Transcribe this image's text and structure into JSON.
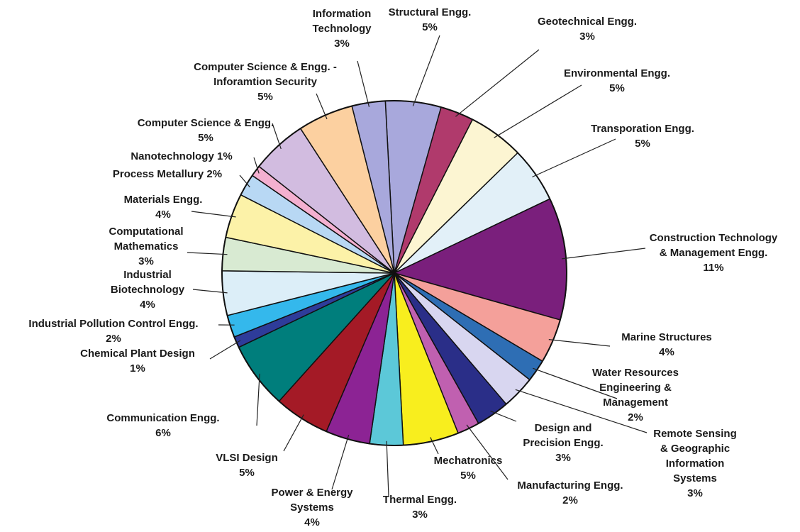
{
  "chart_data": {
    "type": "pie",
    "title": "",
    "start_angle_deg": -93,
    "slices": [
      {
        "label": "Structural Engg.\n5%",
        "name": "Structural Engg.",
        "value": 5,
        "color": "#a8a8dc"
      },
      {
        "label": "Geotechnical Engg.\n3%",
        "name": "Geotechnical Engg.",
        "value": 3,
        "color": "#b03a6c"
      },
      {
        "label": "Environmental Engg.\n5%",
        "name": "Environmental Engg.",
        "value": 5,
        "color": "#fcf5d2"
      },
      {
        "label": "Transporation Engg.\n5%",
        "name": "Transporation Engg.",
        "value": 5,
        "color": "#e2f0f8"
      },
      {
        "label": "Construction Technology\n& Management Engg.\n11%",
        "name": "Construction Technology & Management Engg.",
        "value": 11,
        "color": "#7a1f7c"
      },
      {
        "label": "Marine Structures\n4%",
        "name": "Marine Structures",
        "value": 4,
        "color": "#f4a09a"
      },
      {
        "label": "Water Resources\nEngineering &\nManagement\n2%",
        "name": "Water Resources Engineering & Management",
        "value": 2,
        "color": "#2e6eb4"
      },
      {
        "label": "Remote Sensing\n& Geographic\nInformation\nSystems\n3%",
        "name": "Remote Sensing & Geographic Information Systems",
        "value": 3,
        "color": "#d8d6f0"
      },
      {
        "label": "Design and\nPrecision Engg.\n3%",
        "name": "Design and Precision Engg.",
        "value": 3,
        "color": "#2a2e88"
      },
      {
        "label": "Manufacturing Engg.\n2%",
        "name": "Manufacturing Engg.",
        "value": 2,
        "color": "#c060b0"
      },
      {
        "label": "Mechatronics\n5%",
        "name": "Mechatronics",
        "value": 5,
        "color": "#f8ee1e"
      },
      {
        "label": "Thermal Engg.\n3%",
        "name": "Thermal Engg.",
        "value": 3,
        "color": "#5cc8d8"
      },
      {
        "label": "Power & Energy\nSystems\n4%",
        "name": "Power & Energy Systems",
        "value": 4,
        "color": "#8c2394"
      },
      {
        "label": "VLSI Design\n5%",
        "name": "VLSI Design",
        "value": 5,
        "color": "#a41a26"
      },
      {
        "label": "Communication Engg.\n6%",
        "name": "Communication Engg.",
        "value": 6,
        "color": "#007e7c"
      },
      {
        "label": "Chemical Plant Design\n1%",
        "name": "Chemical Plant Design",
        "value": 1,
        "color": "#2e3c9a"
      },
      {
        "label": "Industrial Pollution Control Engg.\n2%",
        "name": "Industrial Pollution Control Engg.",
        "value": 2,
        "color": "#34b8ec"
      },
      {
        "label": "Industrial\nBiotechnology\n4%",
        "name": "Industrial Biotechnology",
        "value": 4,
        "color": "#dceef8"
      },
      {
        "label": "Computational\nMathematics\n3%",
        "name": "Computational Mathematics",
        "value": 3,
        "color": "#d8ead2"
      },
      {
        "label": "Materials Engg.\n4%",
        "name": "Materials Engg.",
        "value": 4,
        "color": "#fcf2a8"
      },
      {
        "label": "Process Metallury 2%",
        "name": "Process Metallury",
        "value": 2,
        "color": "#b8d8f4"
      },
      {
        "label": "Nanotechnology 1%",
        "name": "Nanotechnology",
        "value": 1,
        "color": "#f4b0d0"
      },
      {
        "label": "Computer Science & Engg.\n5%",
        "name": "Computer Science & Engg.",
        "value": 5,
        "color": "#d2bce0"
      },
      {
        "label": "Computer Science & Engg. -\nInforamtion Security\n5%",
        "name": "Computer Science & Engg. - Inforamtion Security",
        "value": 5,
        "color": "#fcd0a0"
      },
      {
        "label": "Information\nTechnology\n3%",
        "name": "Information Technology",
        "value": 3,
        "color": "#a8a8dc"
      }
    ]
  }
}
